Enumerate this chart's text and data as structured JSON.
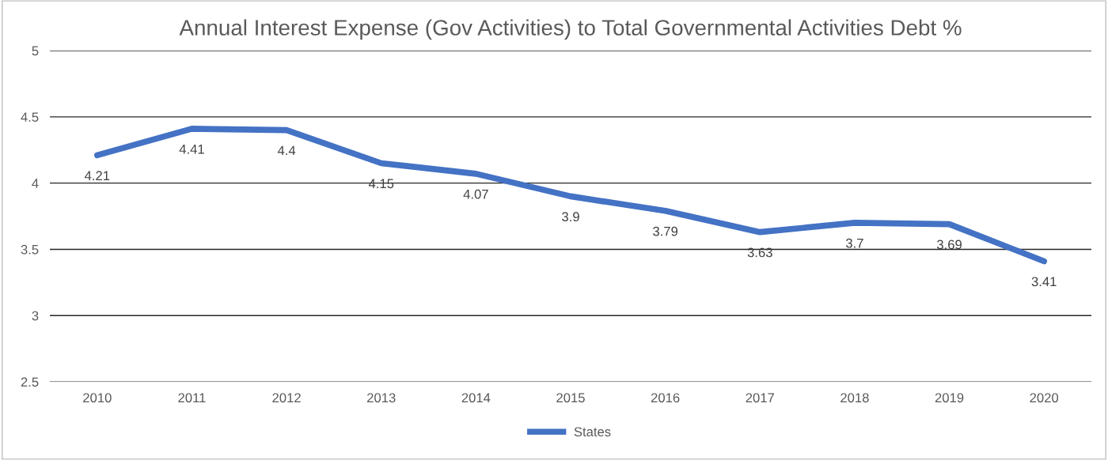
{
  "chart_data": {
    "type": "line",
    "title": "Annual Interest Expense (Gov Activities) to Total Governmental Activities Debt %",
    "categories": [
      "2010",
      "2011",
      "2012",
      "2013",
      "2014",
      "2015",
      "2016",
      "2017",
      "2018",
      "2019",
      "2020"
    ],
    "series": [
      {
        "name": "States",
        "color": "#4472c4",
        "values": [
          4.21,
          4.41,
          4.4,
          4.15,
          4.07,
          3.9,
          3.79,
          3.63,
          3.7,
          3.69,
          3.41
        ]
      }
    ],
    "ylim": [
      2.5,
      5
    ],
    "yticks": [
      2.5,
      3,
      3.5,
      4,
      4.5,
      5
    ],
    "grid": "y",
    "legend": "bottom",
    "data_labels": true,
    "marker": "none",
    "line_style": "solid"
  }
}
